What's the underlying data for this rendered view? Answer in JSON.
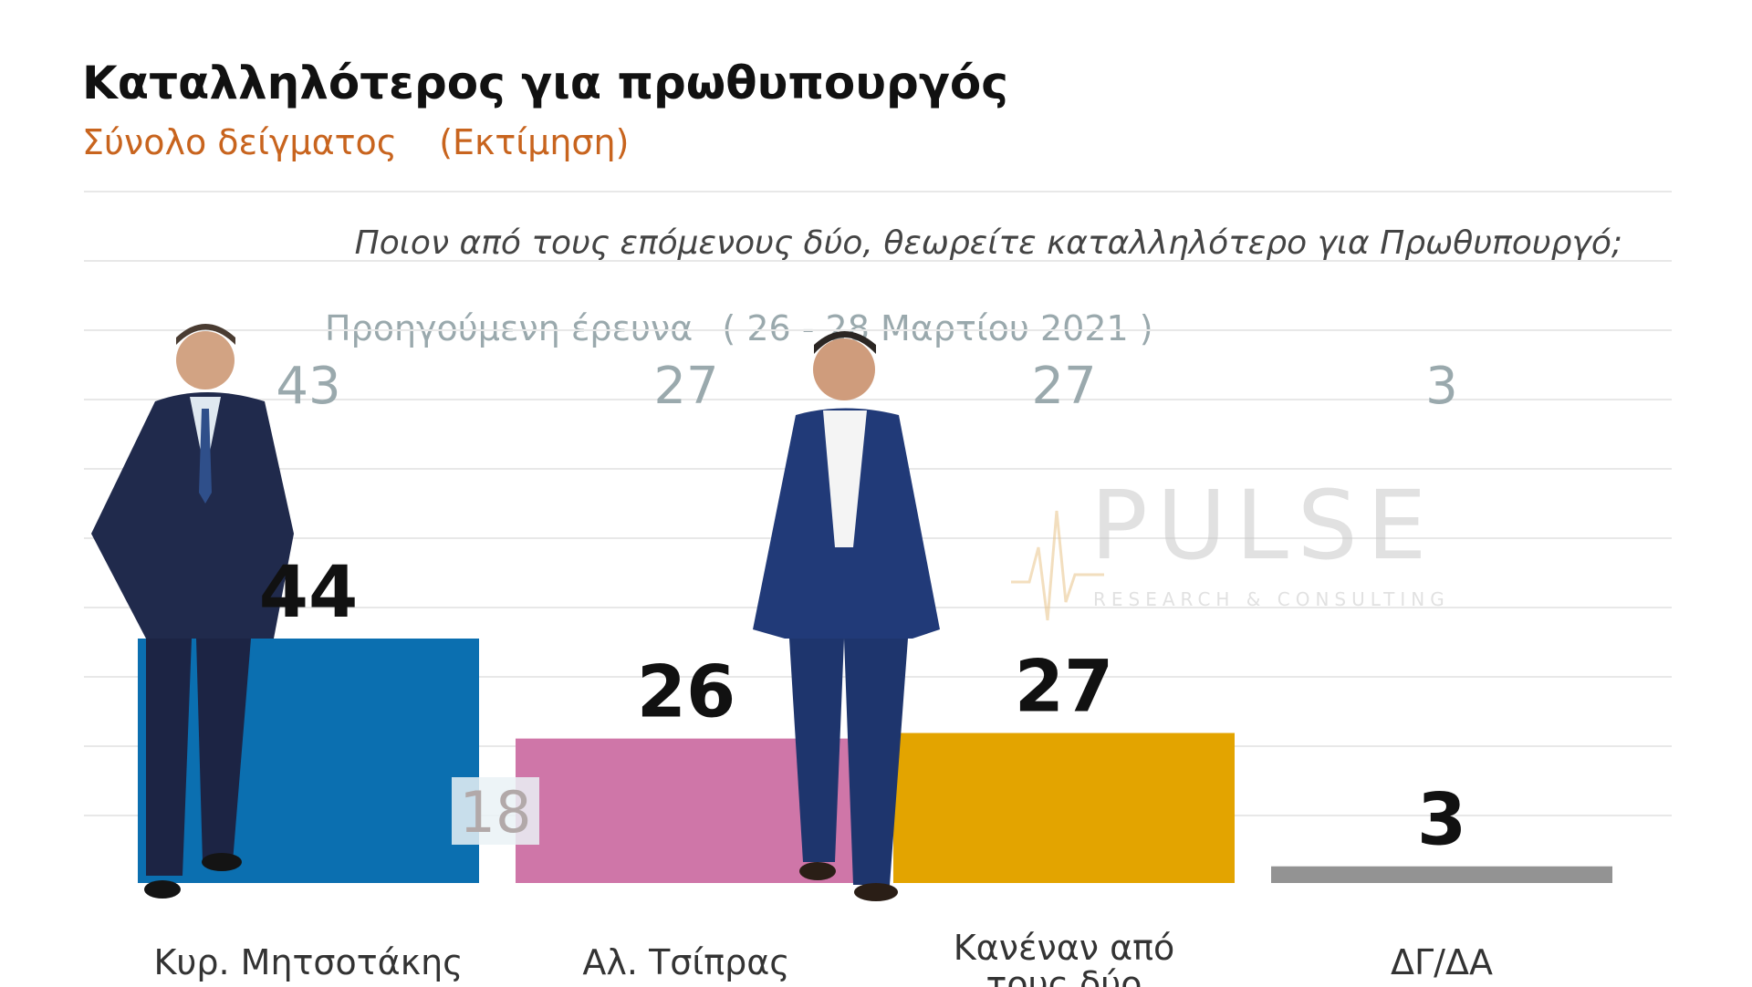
{
  "title": "Καταλληλότερος για πρωθυπουργός",
  "subtitle": {
    "part1": "Σύνολο δείγματος",
    "part2": "(Εκτίμηση)"
  },
  "question": "Ποιον από τους επόμενους δύο, θεωρείτε καταλληλότερο για Πρωθυπουργό;",
  "previous_survey": {
    "label": "Προηγούμενη έρευνα",
    "dates": "( 26 - 28 Μαρτίου 2021 )"
  },
  "watermark": {
    "brand": "PULSE",
    "sub": "RESEARCH & CONSULTING"
  },
  "colors": {
    "title": "#111111",
    "subtitle": "#c8641e",
    "previous": "#9aa9ad",
    "gridline": "#e8e8e8",
    "value_label": "#111111",
    "category_label": "#333333"
  },
  "chart_data": {
    "type": "bar",
    "categories": [
      "Κυρ. Μητσοτάκης",
      "Αλ. Τσίπρας",
      "Κανέναν από τους δύο",
      "ΔΓ/ΔΑ"
    ],
    "series": [
      {
        "values": [
          44,
          26,
          27,
          3
        ]
      }
    ],
    "previous_values": [
      43,
      27,
      27,
      3
    ],
    "bar_colors": [
      "#0b6fb0",
      "#cf76a8",
      "#e3a400",
      "#939393"
    ],
    "annotations": [
      {
        "text": "18",
        "category": "Αλ. Τσίπρας"
      }
    ],
    "ylim": [
      0,
      44
    ],
    "grid": true,
    "legend": "none"
  }
}
